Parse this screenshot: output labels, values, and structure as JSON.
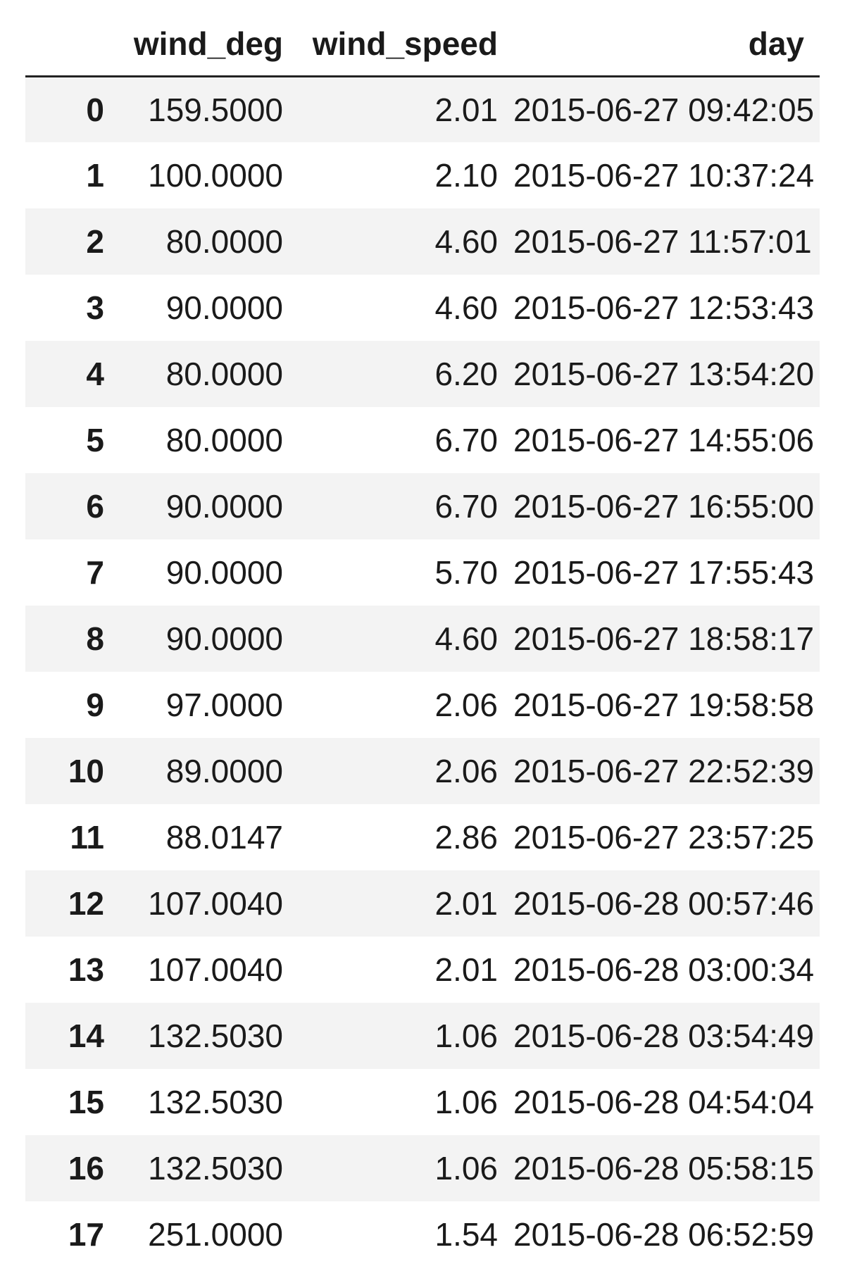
{
  "columns": {
    "index": "",
    "wind_deg": "wind_deg",
    "wind_speed": "wind_speed",
    "day": "day"
  },
  "rows": [
    {
      "index": "0",
      "wind_deg": "159.5000",
      "wind_speed": "2.01",
      "day": "2015-06-27 09:42:05"
    },
    {
      "index": "1",
      "wind_deg": "100.0000",
      "wind_speed": "2.10",
      "day": "2015-06-27 10:37:24"
    },
    {
      "index": "2",
      "wind_deg": "80.0000",
      "wind_speed": "4.60",
      "day": "2015-06-27 11:57:01"
    },
    {
      "index": "3",
      "wind_deg": "90.0000",
      "wind_speed": "4.60",
      "day": "2015-06-27 12:53:43"
    },
    {
      "index": "4",
      "wind_deg": "80.0000",
      "wind_speed": "6.20",
      "day": "2015-06-27 13:54:20"
    },
    {
      "index": "5",
      "wind_deg": "80.0000",
      "wind_speed": "6.70",
      "day": "2015-06-27 14:55:06"
    },
    {
      "index": "6",
      "wind_deg": "90.0000",
      "wind_speed": "6.70",
      "day": "2015-06-27 16:55:00"
    },
    {
      "index": "7",
      "wind_deg": "90.0000",
      "wind_speed": "5.70",
      "day": "2015-06-27 17:55:43"
    },
    {
      "index": "8",
      "wind_deg": "90.0000",
      "wind_speed": "4.60",
      "day": "2015-06-27 18:58:17"
    },
    {
      "index": "9",
      "wind_deg": "97.0000",
      "wind_speed": "2.06",
      "day": "2015-06-27 19:58:58"
    },
    {
      "index": "10",
      "wind_deg": "89.0000",
      "wind_speed": "2.06",
      "day": "2015-06-27 22:52:39"
    },
    {
      "index": "11",
      "wind_deg": "88.0147",
      "wind_speed": "2.86",
      "day": "2015-06-27 23:57:25"
    },
    {
      "index": "12",
      "wind_deg": "107.0040",
      "wind_speed": "2.01",
      "day": "2015-06-28 00:57:46"
    },
    {
      "index": "13",
      "wind_deg": "107.0040",
      "wind_speed": "2.01",
      "day": "2015-06-28 03:00:34"
    },
    {
      "index": "14",
      "wind_deg": "132.5030",
      "wind_speed": "1.06",
      "day": "2015-06-28 03:54:49"
    },
    {
      "index": "15",
      "wind_deg": "132.5030",
      "wind_speed": "1.06",
      "day": "2015-06-28 04:54:04"
    },
    {
      "index": "16",
      "wind_deg": "132.5030",
      "wind_speed": "1.06",
      "day": "2015-06-28 05:58:15"
    },
    {
      "index": "17",
      "wind_deg": "251.0000",
      "wind_speed": "1.54",
      "day": "2015-06-28 06:52:59"
    }
  ]
}
